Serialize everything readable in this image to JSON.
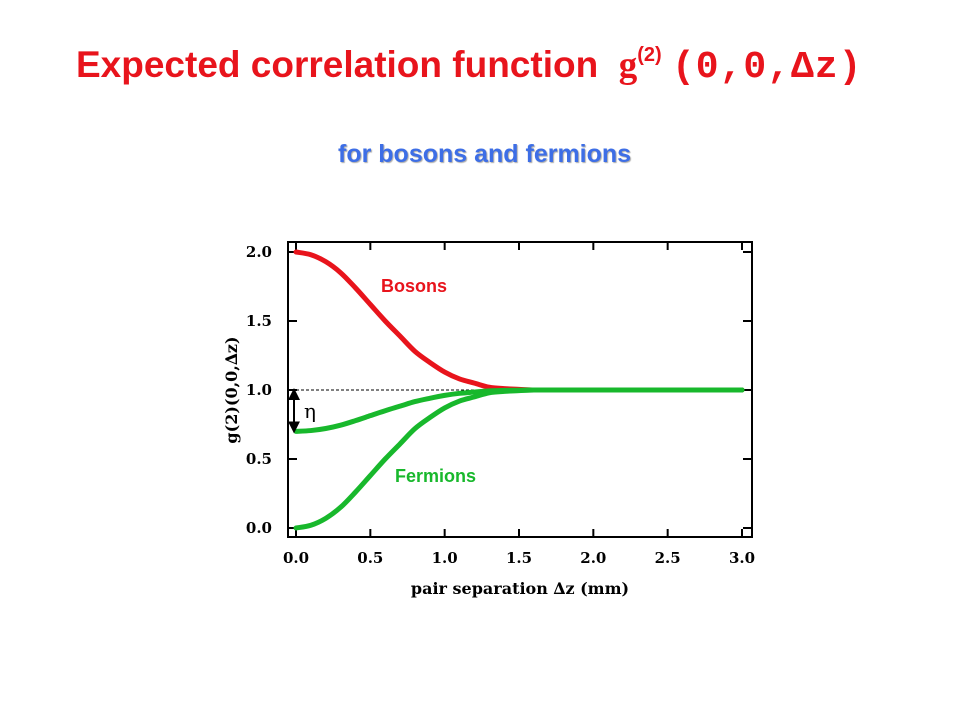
{
  "slide": {
    "title_main": "Expected correlation function",
    "title_g": "g",
    "title_sup": "(2)",
    "title_arg": "(0,0,∆z)",
    "subtitle": "for bosons and fermions"
  },
  "chart_data": {
    "type": "line",
    "xlabel": "pair separation ∆z (mm)",
    "ylabel": "g(2)(0,0,∆z)",
    "xlim": [
      0,
      3
    ],
    "ylim": [
      0,
      2
    ],
    "x_ticks": [
      "0.0",
      "0.5",
      "1.0",
      "1.5",
      "2.0",
      "2.5",
      "3.0"
    ],
    "y_ticks": [
      "0.0",
      "0.5",
      "1.0",
      "1.5",
      "2.0"
    ],
    "reference_line": 1.0,
    "eta_label": "η",
    "x": [
      0,
      0.1,
      0.2,
      0.3,
      0.4,
      0.5,
      0.6,
      0.7,
      0.8,
      0.9,
      1.0,
      1.1,
      1.2,
      1.3,
      1.4,
      1.5,
      1.6,
      1.7,
      1.8,
      1.9,
      2.0,
      2.2,
      2.4,
      2.6,
      2.8,
      3.0
    ],
    "series": [
      {
        "name": "Bosons",
        "color": "#e8141c",
        "values": [
          2.0,
          1.98,
          1.93,
          1.85,
          1.74,
          1.62,
          1.5,
          1.39,
          1.28,
          1.2,
          1.13,
          1.08,
          1.05,
          1.02,
          1.01,
          1.005,
          1.0,
          1.0,
          1.0,
          1.0,
          1.0,
          1.0,
          1.0,
          1.0,
          1.0,
          1.0
        ]
      },
      {
        "name": "Fermions",
        "color": "#18b82c",
        "values": [
          0.0,
          0.02,
          0.07,
          0.15,
          0.26,
          0.38,
          0.5,
          0.61,
          0.72,
          0.8,
          0.87,
          0.92,
          0.95,
          0.98,
          0.99,
          0.995,
          1.0,
          1.0,
          1.0,
          1.0,
          1.0,
          1.0,
          1.0,
          1.0,
          1.0,
          1.0
        ]
      },
      {
        "name": "",
        "color": "#18b82c",
        "values": [
          0.7,
          0.706,
          0.721,
          0.745,
          0.778,
          0.814,
          0.85,
          0.883,
          0.916,
          0.94,
          0.961,
          0.976,
          0.985,
          0.994,
          0.997,
          0.9985,
          1.0,
          1.0,
          1.0,
          1.0,
          1.0,
          1.0,
          1.0,
          1.0,
          1.0,
          1.0
        ]
      }
    ]
  }
}
